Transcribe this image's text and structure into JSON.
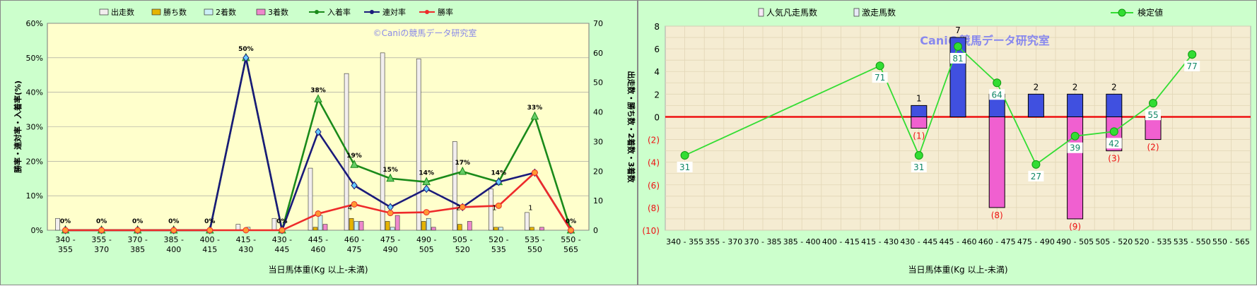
{
  "chart_data": [
    {
      "type": "bar",
      "xlabel": "当日馬体重(Kg 以上-未満)",
      "ylabel_left": "勝率・連対率・入着率(%)",
      "ylabel_right": "出走数・勝ち数・2着数・3着数",
      "watermark": "©Caniの競馬データ研究室",
      "categories": [
        "340 - 355",
        "355 - 370",
        "370 - 385",
        "385 - 400",
        "400 - 415",
        "415 - 430",
        "430 - 445",
        "445 - 460",
        "460 - 475",
        "475 - 490",
        "490 - 505",
        "505 - 520",
        "520 - 535",
        "535 - 550",
        "550 - 565"
      ],
      "y_left_ticks": [
        "0%",
        "10%",
        "20%",
        "30%",
        "40%",
        "50%",
        "60%"
      ],
      "y_right_ticks": [
        "0",
        "10",
        "20",
        "30",
        "40",
        "50",
        "60",
        "70"
      ],
      "ylim_left": [
        0,
        60
      ],
      "ylim_right": [
        0,
        70
      ],
      "bar_series": [
        {
          "name": "出走数",
          "color": "#f2eeee",
          "values": [
            4,
            0,
            0,
            0,
            0,
            2,
            4,
            21,
            53,
            60,
            58,
            30,
            14,
            6,
            0
          ]
        },
        {
          "name": "勝ち数",
          "color": "#e6b400",
          "values": [
            0,
            0,
            0,
            0,
            0,
            0,
            0,
            1,
            4,
            3,
            3,
            2,
            1,
            1,
            0
          ]
        },
        {
          "name": "2着数",
          "color": "#ccf0f6",
          "values": [
            0,
            0,
            0,
            0,
            0,
            1,
            0,
            5,
            3,
            1,
            4,
            0,
            1,
            0,
            0
          ]
        },
        {
          "name": "3着数",
          "color": "#ee88cc",
          "values": [
            0,
            0,
            0,
            0,
            0,
            0,
            0,
            2,
            3,
            5,
            1,
            3,
            0,
            1,
            0
          ]
        }
      ],
      "line_series": [
        {
          "name": "入着率",
          "color": "#1a8a1a",
          "marker": "triangle",
          "values": [
            0,
            0,
            0,
            0,
            0,
            50,
            0,
            38,
            19,
            15,
            14,
            17,
            14,
            33,
            0
          ]
        },
        {
          "name": "連対率",
          "color": "#1a1a7a",
          "marker": "diamond",
          "values": [
            0,
            0,
            0,
            0,
            0,
            50,
            0,
            28.5,
            13,
            6.7,
            12,
            6.7,
            14,
            16.7,
            0
          ]
        },
        {
          "name": "勝率",
          "color": "#ee2a2a",
          "marker": "circle",
          "values": [
            0,
            0,
            0,
            0,
            0,
            0,
            0,
            4.8,
            7.5,
            5,
            5.2,
            6.7,
            7.1,
            16.7,
            0
          ]
        }
      ],
      "point_labels": {
        "rate": [
          "0%",
          "0%",
          "0%",
          "0%",
          "0%",
          "50%",
          "0%",
          "38%",
          "19%",
          "15%",
          "14%",
          "17%",
          "14%",
          "33%",
          "0%"
        ],
        "counts": [
          {
            "index": 8,
            "text": "4"
          },
          {
            "index": 11,
            "text": "2"
          },
          {
            "index": 12,
            "text": "1"
          },
          {
            "index": 13,
            "text": "1"
          }
        ]
      }
    },
    {
      "type": "bar",
      "xlabel": "当日馬体重(Kg 以上-未満)",
      "watermark": "Caniの競馬データ研究室",
      "categories": [
        "340 - 355",
        "355 - 370",
        "370 - 385",
        "385 - 400",
        "400 - 415",
        "415 - 430",
        "430 - 445",
        "445 - 460",
        "460 - 475",
        "475 - 490",
        "490 - 505",
        "505 - 520",
        "520 - 535",
        "535 - 550",
        "550 - 565"
      ],
      "y_ticks": [
        "8",
        "6",
        "4",
        "2",
        "0",
        "(2)",
        "(4)",
        "(6)",
        "(8)",
        "(10)"
      ],
      "ylim": [
        -10,
        8
      ],
      "bar_series": [
        {
          "name": "人気凡走馬数",
          "color": "#f060d0",
          "values": [
            0,
            0,
            0,
            0,
            0,
            0,
            -1,
            0,
            -8,
            0,
            -9,
            -3,
            -2,
            0,
            0
          ],
          "labels": [
            "",
            "",
            "",
            "",
            "",
            "",
            "(1)",
            "",
            "(8)",
            "",
            "(9)",
            "(3)",
            "(2)",
            "",
            ""
          ]
        },
        {
          "name": "激走馬数",
          "color": "#4050e0",
          "values": [
            0,
            0,
            0,
            0,
            0,
            0,
            1,
            7,
            2,
            2,
            2,
            2,
            0,
            0,
            0
          ],
          "labels": [
            "",
            "",
            "",
            "",
            "",
            "",
            "1",
            "7",
            "",
            "2",
            "2",
            "2",
            "",
            "",
            ""
          ]
        }
      ],
      "line_series": [
        {
          "name": "検定値",
          "color": "#33dd33",
          "points": [
            {
              "index": 0,
              "y": -3.4,
              "label": "31"
            },
            {
              "index": 5,
              "y": 4.5,
              "label": "71"
            },
            {
              "index": 6,
              "y": -3.4,
              "label": "31"
            },
            {
              "index": 7,
              "y": 6.2,
              "label": "81"
            },
            {
              "index": 8,
              "y": 3.0,
              "label": "64"
            },
            {
              "index": 9,
              "y": -4.2,
              "label": "27"
            },
            {
              "index": 10,
              "y": -1.7,
              "label": "39"
            },
            {
              "index": 11,
              "y": -1.3,
              "label": "42"
            },
            {
              "index": 12,
              "y": 1.2,
              "label": "55"
            },
            {
              "index": 13,
              "y": 5.5,
              "label": "77"
            }
          ]
        }
      ]
    }
  ]
}
